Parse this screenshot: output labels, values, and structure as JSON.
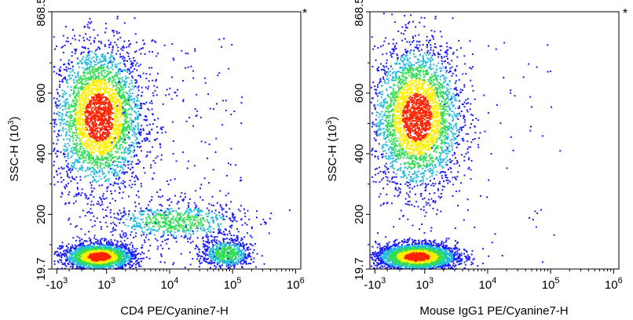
{
  "chart_data": [
    {
      "type": "scatter",
      "subtype": "flow-cytometry-density-dot-plot",
      "xlabel": "CD4 PE/Cyanine7-H",
      "ylabel": "SSC-H",
      "ylabel_unit_base": "10",
      "ylabel_unit_exp": "3",
      "corner_mark": "*",
      "xscale": "biexponential",
      "xlim": [
        -1000,
        1000000
      ],
      "ylim": [
        19.7,
        868.5
      ],
      "x_ticks": [
        {
          "value": -1000,
          "base": "-10",
          "exp": "3"
        },
        {
          "value": 1000,
          "base": "10",
          "exp": "3"
        },
        {
          "value": 10000,
          "base": "10",
          "exp": "4"
        },
        {
          "value": 100000,
          "base": "10",
          "exp": "5"
        },
        {
          "value": 1000000,
          "base": "10",
          "exp": "6"
        }
      ],
      "y_ticks": [
        {
          "value": 19.7,
          "label": "19.7"
        },
        {
          "value": 200,
          "label": "200"
        },
        {
          "value": 400,
          "label": "400"
        },
        {
          "value": 600,
          "label": "600"
        },
        {
          "value": 868.5,
          "label": "868.5"
        }
      ],
      "populations": [
        {
          "name": "CD4- cells (high SSC)",
          "x": 700,
          "y": 520,
          "sx": 0.09,
          "sy": 120,
          "count": 3200
        },
        {
          "name": "CD4- lymphocytes",
          "x": 700,
          "y": 60,
          "sx": 0.07,
          "sy": 22,
          "count": 2200
        },
        {
          "name": "CD4 dim",
          "x": 12000,
          "y": 175,
          "sx": 0.14,
          "sy": 32,
          "count": 700
        },
        {
          "name": "CD4+ T cells",
          "x": 80000,
          "y": 70,
          "sx": 0.05,
          "sy": 25,
          "count": 650
        },
        {
          "name": "background events",
          "spread": true,
          "count": 260
        }
      ]
    },
    {
      "type": "scatter",
      "subtype": "flow-cytometry-density-dot-plot",
      "xlabel": "Mouse IgG1 PE/Cyanine7-H",
      "ylabel": "SSC-H",
      "ylabel_unit_base": "10",
      "ylabel_unit_exp": "3",
      "corner_mark": "*",
      "xscale": "biexponential",
      "xlim": [
        -1000,
        1000000
      ],
      "ylim": [
        19.7,
        868.5
      ],
      "x_ticks": [
        {
          "value": -1000,
          "base": "-10",
          "exp": "3"
        },
        {
          "value": 1000,
          "base": "10",
          "exp": "3"
        },
        {
          "value": 10000,
          "base": "10",
          "exp": "4"
        },
        {
          "value": 100000,
          "base": "10",
          "exp": "5"
        },
        {
          "value": 1000000,
          "base": "10",
          "exp": "6"
        }
      ],
      "y_ticks": [
        {
          "value": 19.7,
          "label": "19.7"
        },
        {
          "value": 200,
          "label": "200"
        },
        {
          "value": 400,
          "label": "400"
        },
        {
          "value": 600,
          "label": "600"
        },
        {
          "value": 868.5,
          "label": "868.5"
        }
      ],
      "populations": [
        {
          "name": "high SSC cells",
          "x": 700,
          "y": 520,
          "sx": 0.09,
          "sy": 120,
          "count": 3200
        },
        {
          "name": "lymphocytes",
          "x": 700,
          "y": 60,
          "sx": 0.08,
          "sy": 22,
          "count": 3000
        },
        {
          "name": "background events",
          "spread": true,
          "count": 60
        }
      ]
    }
  ],
  "colors": {
    "low": "#1a1aff",
    "mid": "#22bbdd",
    "midhigh": "#33dd55",
    "high": "#ffee00",
    "peak": "#ff2200"
  }
}
